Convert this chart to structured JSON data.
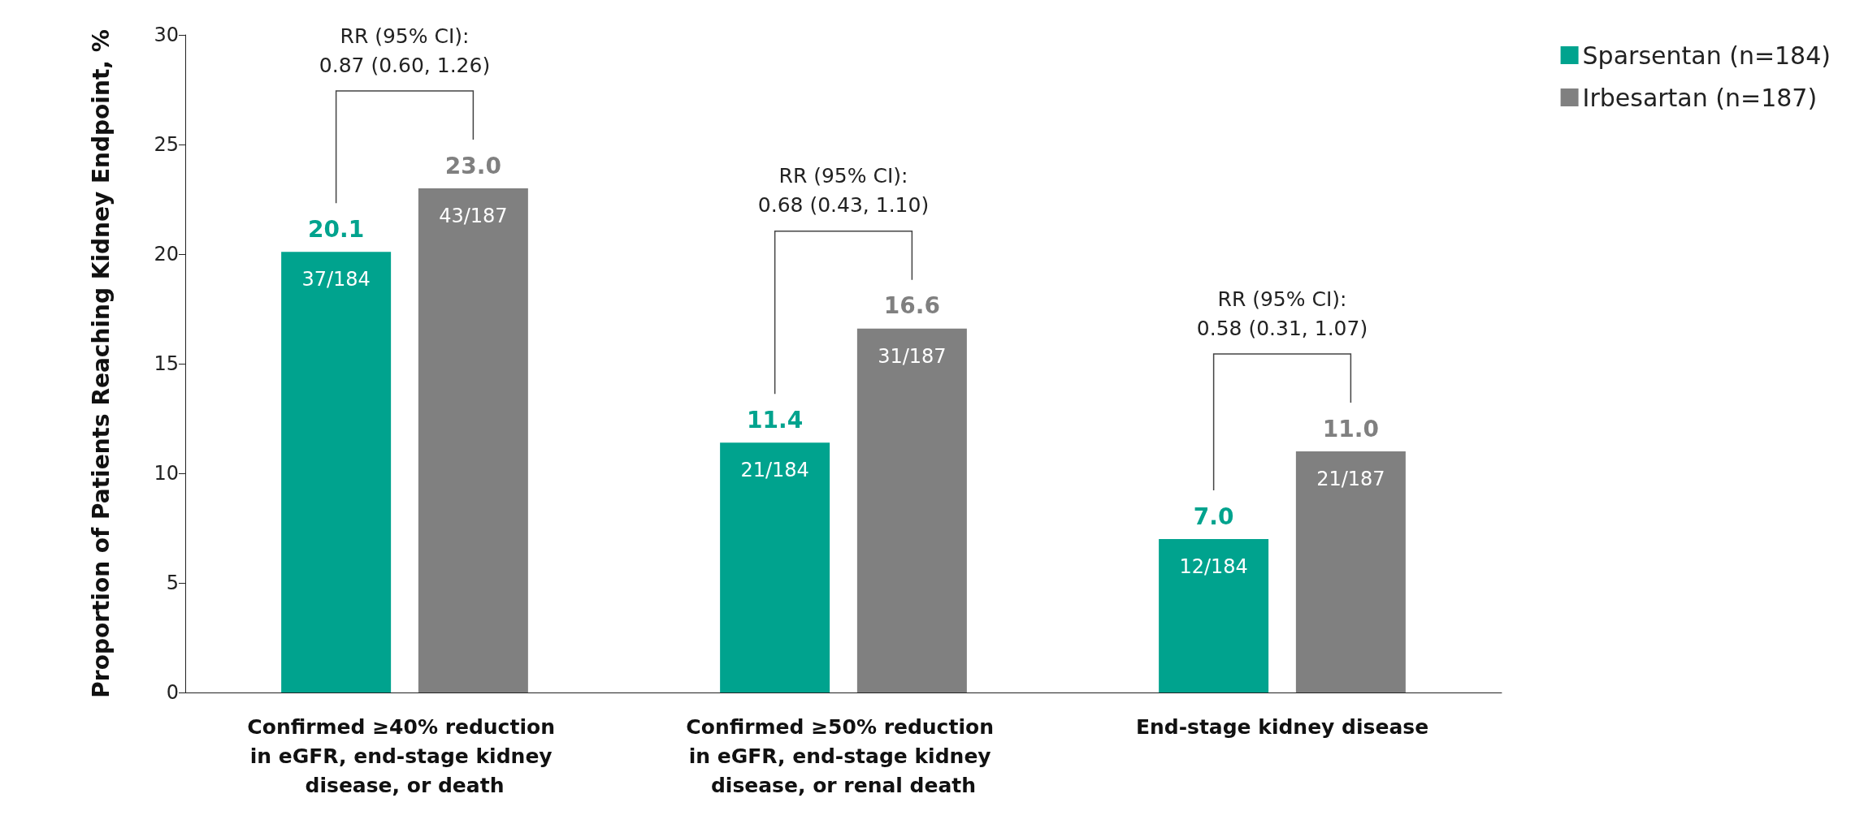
{
  "chart_data": {
    "type": "bar",
    "ylabel": "Proportion of Patients Reaching Kidney Endpoint, %",
    "categories": [
      "Confirmed ≥40% reduction in eGFR, end-stage kidney disease, or death",
      "Confirmed ≥50% reduction in eGFR, end-stage kidney disease, or renal death",
      "End-stage kidney disease"
    ],
    "series": [
      {
        "name": "Sparsentan (n=184)",
        "color": "#00a38e",
        "values": [
          20.1,
          11.4,
          7.0
        ],
        "value_labels": [
          "20.1",
          "11.4",
          "7.0"
        ]
      },
      {
        "name": "Irbesartan (n=187)",
        "color": "#808080",
        "values": [
          23.0,
          16.6,
          11.0
        ],
        "value_labels": [
          "23.0",
          "16.6",
          "11.0"
        ]
      }
    ],
    "ylim": [
      0,
      30
    ],
    "yticks": [
      0,
      5,
      10,
      15,
      20,
      25,
      30
    ],
    "grid": false,
    "legend": "top right",
    "annotations": [
      "37/184",
      "43/187",
      "21/184",
      "31/187",
      "12/184",
      "21/187",
      "RR (95% CI):\n0.87 (0.60, 1.26)",
      "RR (95% CI):\n0.68 (0.43, 1.10)",
      "RR (95% CI):\n0.58 (0.31, 1.07)"
    ]
  }
}
